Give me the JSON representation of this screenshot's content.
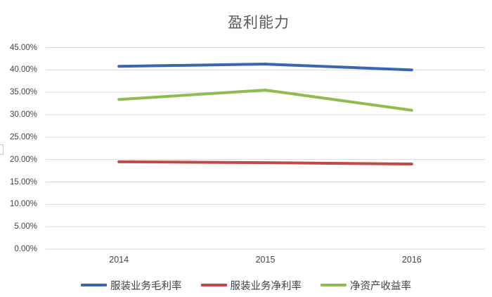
{
  "chart_data": {
    "type": "line",
    "title": "盈利能力",
    "categories": [
      "2014",
      "2015",
      "2016"
    ],
    "series": [
      {
        "name": "服装业务毛利率",
        "color": "#3c67b0",
        "values": [
          40.8,
          41.3,
          40.0
        ]
      },
      {
        "name": "服装业务净利率",
        "color": "#be4b48",
        "values": [
          19.5,
          19.3,
          19.0
        ]
      },
      {
        "name": "净资产收益率",
        "color": "#8fbc4f",
        "values": [
          33.4,
          35.5,
          31.0
        ]
      }
    ],
    "xlabel": "",
    "ylabel": "",
    "ylim": [
      0,
      45
    ],
    "ytick_step": 5,
    "ytick_labels": [
      "0.00%",
      "5.00%",
      "10.00%",
      "15.00%",
      "20.00%",
      "25.00%",
      "30.00%",
      "35.00%",
      "40.00%",
      "45.00%"
    ],
    "grid": "horizontal",
    "legend_position": "bottom",
    "colors": {
      "gridline": "#d9d9d9",
      "axis_label": "#444444",
      "title": "#595959",
      "background": "#ffffff"
    }
  }
}
